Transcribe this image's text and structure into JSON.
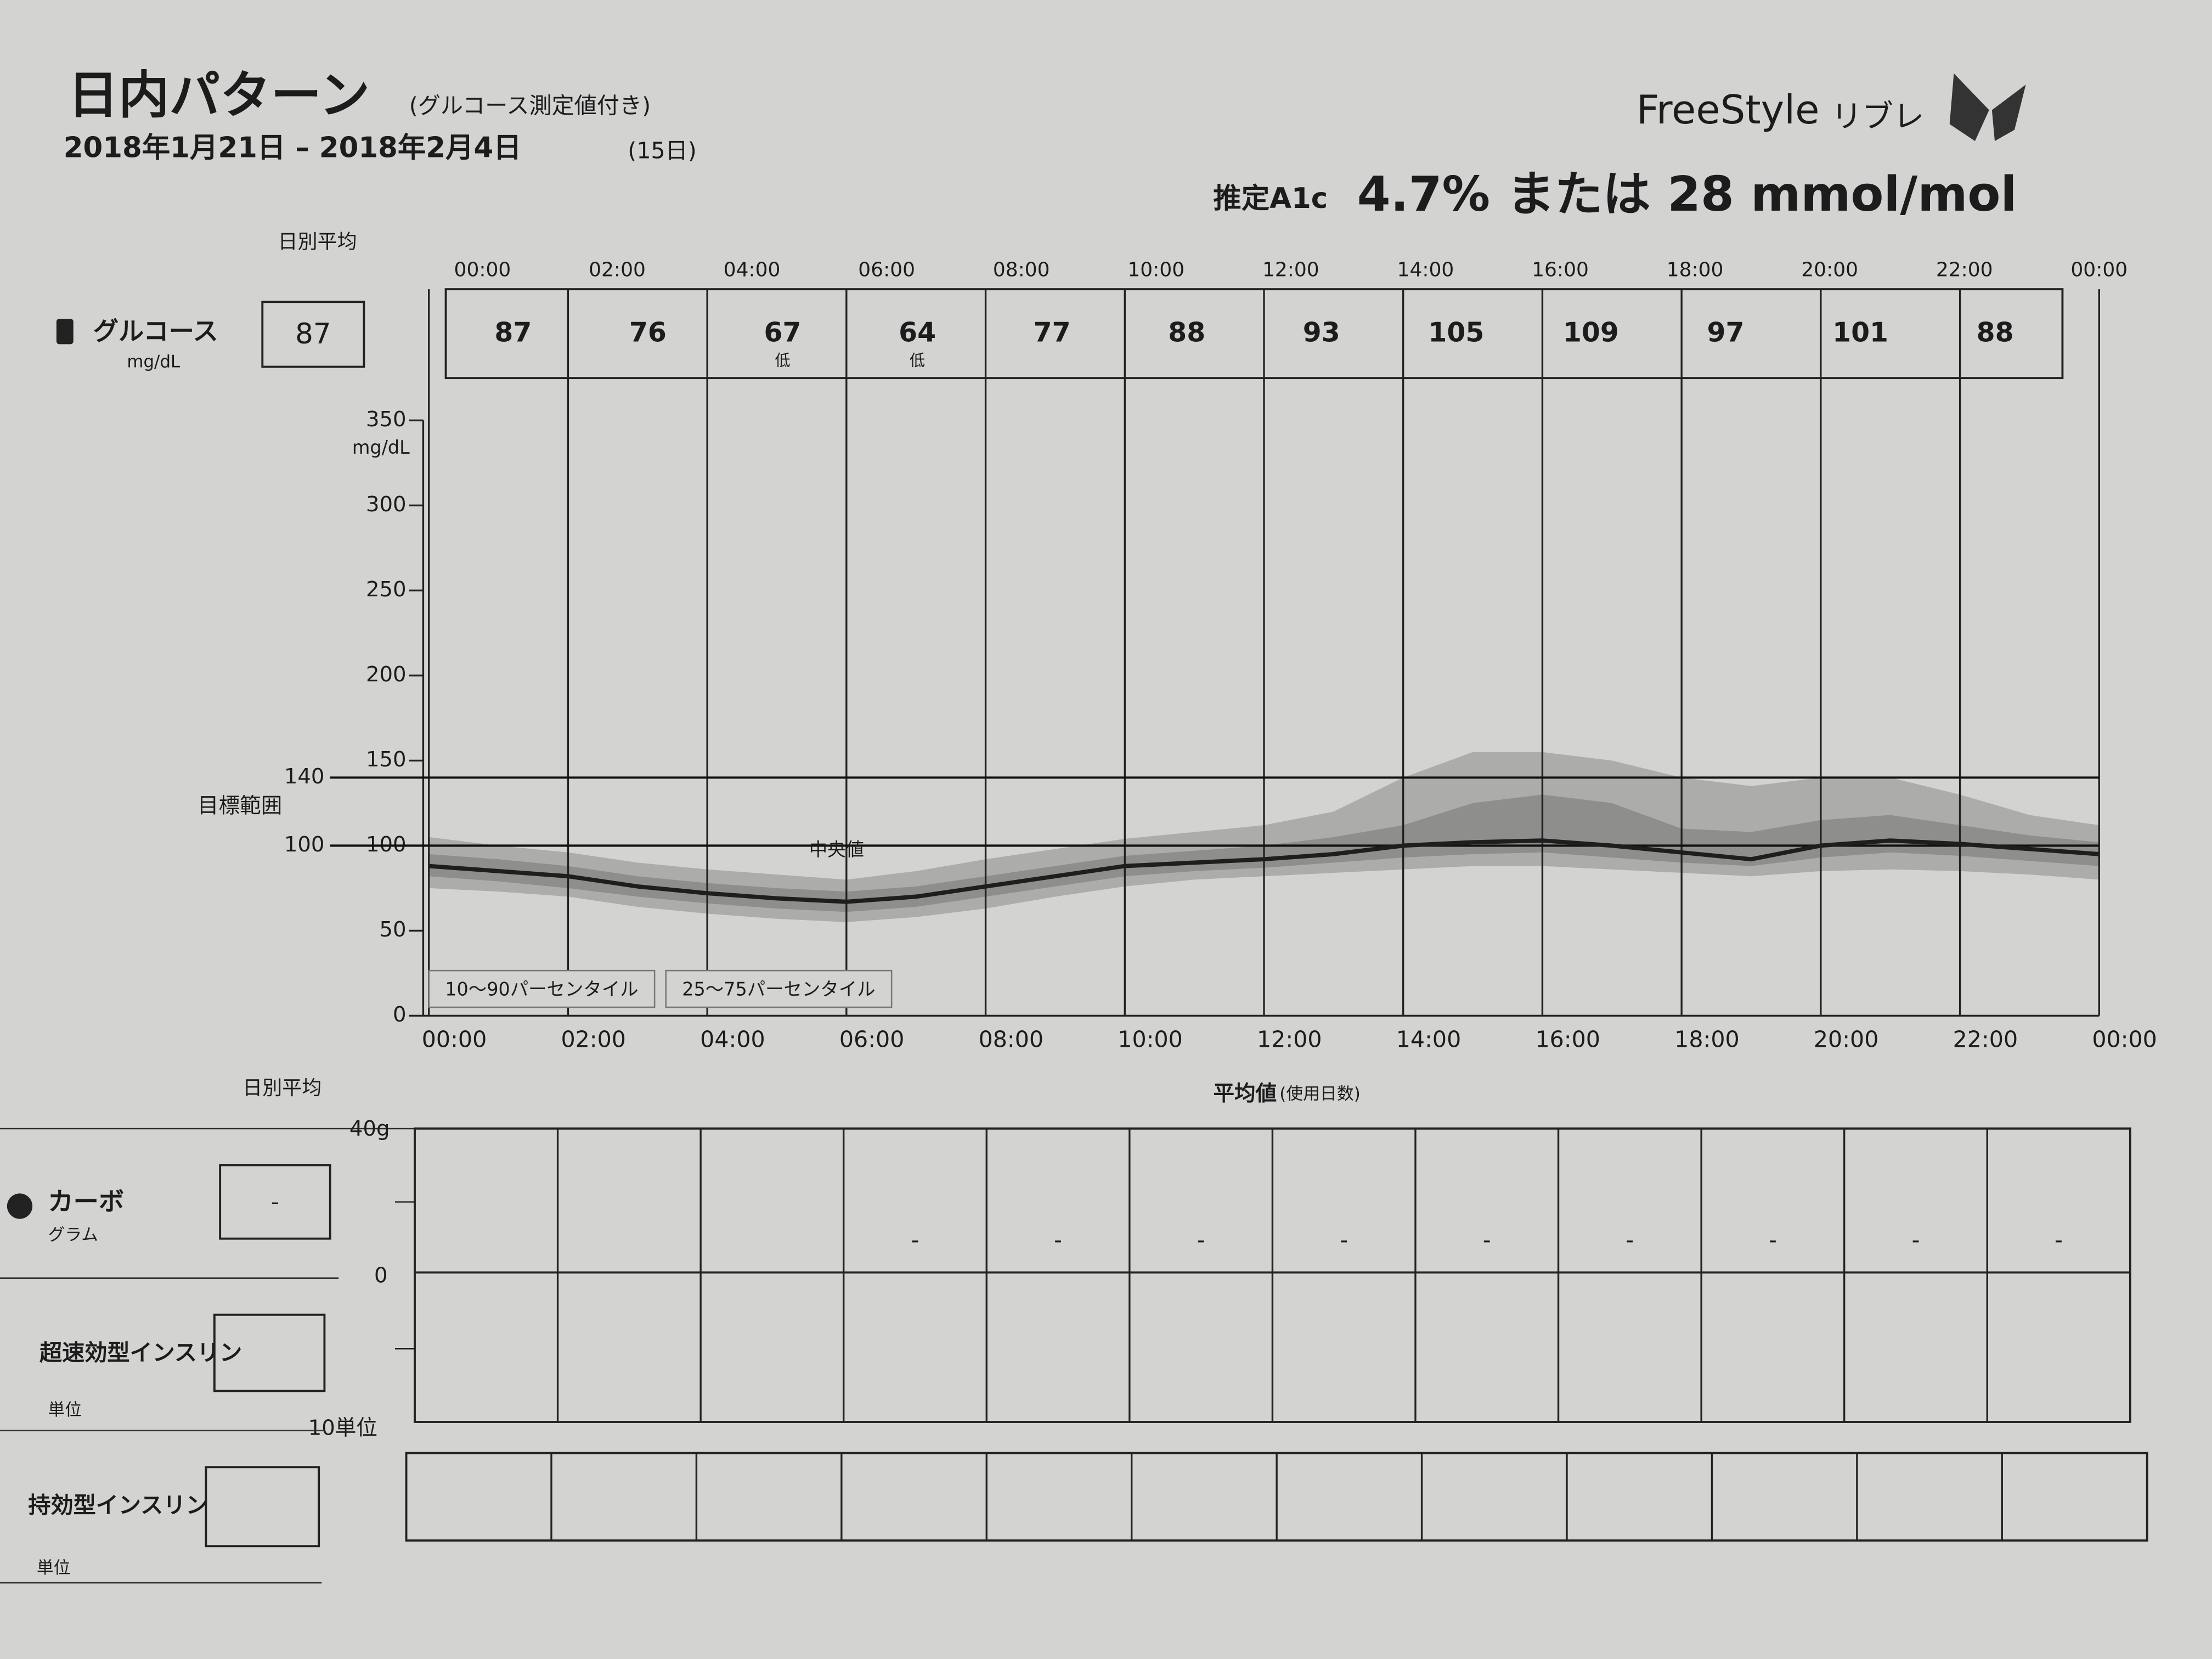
{
  "header": {
    "title": "日内パターン",
    "subtitle": "(グルコース測定値付き)",
    "date_range": "2018年1月21日 – 2018年2月4日",
    "days": "(15日)",
    "brand": "FreeStyle",
    "brand_sub": "リブレ",
    "a1c_label": "推定A1c",
    "a1c": "4.7% または 28 mmol/mol"
  },
  "daily_avg_label": "日別平均",
  "time_labels": [
    "00:00",
    "02:00",
    "04:00",
    "06:00",
    "08:00",
    "10:00",
    "12:00",
    "14:00",
    "16:00",
    "18:00",
    "20:00",
    "22:00",
    "00:00"
  ],
  "glucose_row": {
    "label": "グルコース",
    "unit": "mg/dL",
    "daily_avg": 87,
    "values": [
      87,
      76,
      67,
      64,
      77,
      88,
      93,
      105,
      109,
      97,
      101,
      88
    ],
    "notes": [
      null,
      null,
      "低",
      "低",
      null,
      null,
      null,
      null,
      null,
      null,
      null,
      null
    ]
  },
  "chart_data": {
    "type": "line",
    "y_unit": "mg/dL",
    "target_label": "目標範囲",
    "target_low": 100,
    "target_high": 140,
    "median_label": "中央値",
    "x": [
      0,
      1,
      2,
      3,
      4,
      5,
      6,
      7,
      8,
      9,
      10,
      11,
      12,
      13,
      14,
      15,
      16,
      17,
      18,
      19,
      20,
      21,
      22,
      23,
      24
    ],
    "xlim": [
      0,
      24
    ],
    "xticks": [
      {
        "value": 0,
        "label": "00:00"
      },
      {
        "value": 2,
        "label": "02:00"
      },
      {
        "value": 4,
        "label": "04:00"
      },
      {
        "value": 6,
        "label": "06:00"
      },
      {
        "value": 8,
        "label": "08:00"
      },
      {
        "value": 10,
        "label": "10:00"
      },
      {
        "value": 12,
        "label": "12:00"
      },
      {
        "value": 14,
        "label": "14:00"
      },
      {
        "value": 16,
        "label": "16:00"
      },
      {
        "value": 18,
        "label": "18:00"
      },
      {
        "value": 20,
        "label": "20:00"
      },
      {
        "value": 22,
        "label": "22:00"
      },
      {
        "value": 24,
        "label": "00:00"
      }
    ],
    "ylim": [
      0,
      350
    ],
    "yticks": [
      0,
      50,
      100,
      150,
      200,
      250,
      300,
      350
    ],
    "bands": [
      {
        "name": "10～90パーセンタイル",
        "color": "#acacaa",
        "low": [
          75,
          73,
          70,
          64,
          60,
          57,
          55,
          58,
          63,
          70,
          76,
          80,
          82,
          84,
          86,
          88,
          88,
          86,
          84,
          82,
          85,
          86,
          85,
          83,
          80
        ],
        "high": [
          105,
          100,
          96,
          90,
          86,
          83,
          80,
          85,
          92,
          98,
          104,
          108,
          112,
          120,
          140,
          155,
          155,
          150,
          140,
          135,
          140,
          140,
          130,
          118,
          112
        ]
      },
      {
        "name": "25～75パーセンタイル",
        "color": "#8e8e8c",
        "low": [
          82,
          79,
          75,
          70,
          66,
          63,
          61,
          64,
          70,
          76,
          82,
          85,
          87,
          90,
          93,
          95,
          96,
          93,
          90,
          88,
          93,
          96,
          94,
          91,
          88
        ],
        "high": [
          95,
          92,
          88,
          82,
          78,
          75,
          73,
          76,
          82,
          88,
          94,
          97,
          100,
          105,
          112,
          125,
          130,
          125,
          110,
          108,
          115,
          118,
          112,
          106,
          102
        ]
      }
    ],
    "series": [
      {
        "name": "中央値",
        "color": "#1e1e1e",
        "values": [
          88,
          85,
          82,
          76,
          72,
          69,
          67,
          70,
          76,
          82,
          88,
          90,
          92,
          95,
          100,
          102,
          103,
          100,
          96,
          92,
          100,
          103,
          101,
          98,
          95
        ]
      }
    ]
  },
  "lower": {
    "title": "平均値",
    "title_note": "(使用日数)",
    "scale": [
      "40g",
      "0",
      "10単位"
    ],
    "carbs": {
      "label": "カーボ",
      "unit": "グラム",
      "daily_avg": "-",
      "values": [
        null,
        null,
        null,
        "-",
        "-",
        "-",
        "-",
        "-",
        "-",
        "-",
        "-",
        "-"
      ]
    },
    "rapid": {
      "label": "超速効型インスリン",
      "unit": "単位"
    },
    "long": {
      "label": "持効型インスリン",
      "unit": "単位"
    }
  }
}
